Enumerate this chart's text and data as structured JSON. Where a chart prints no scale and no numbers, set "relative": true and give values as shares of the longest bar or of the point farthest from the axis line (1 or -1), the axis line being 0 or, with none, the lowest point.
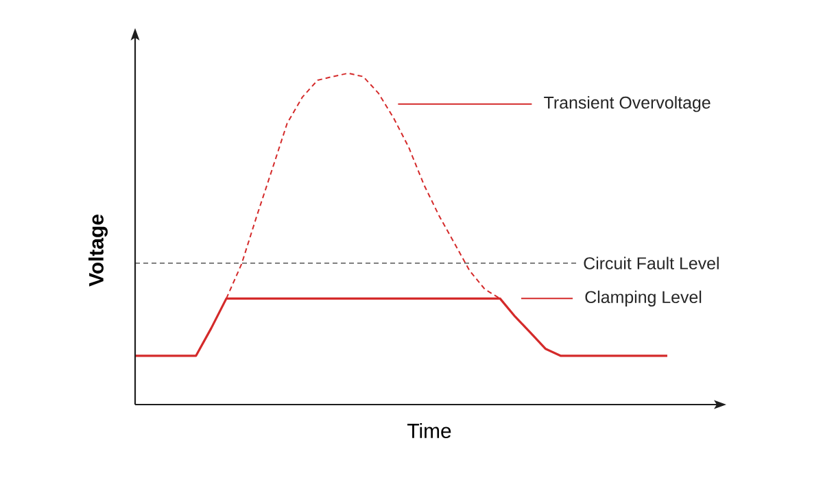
{
  "chart_data": {
    "type": "line",
    "relative": true,
    "xlabel": "Time",
    "ylabel": "Voltage",
    "marker": "none",
    "legend": "right",
    "categories": [
      null,
      null,
      null,
      null,
      null,
      null,
      null,
      null,
      null,
      null,
      null,
      null,
      null,
      null,
      null,
      null,
      null,
      null,
      null,
      null,
      null,
      null,
      null,
      null,
      null,
      null,
      null,
      null,
      null,
      null,
      null,
      null,
      null,
      null,
      null,
      null
    ],
    "series": [
      {
        "name": "Transient Overvoltage",
        "color": "#d42a2a",
        "line_style": "dashed",
        "values": [
          null,
          null,
          null,
          null,
          null,
          null,
          0.32,
          0.424,
          0.569,
          0.708,
          0.849,
          0.928,
          0.979,
          0.99,
          1,
          0.99,
          0.94,
          0.865,
          0.776,
          0.663,
          0.569,
          0.487,
          0.404,
          0.348,
          0.32,
          null,
          null,
          null,
          null,
          null,
          null,
          null,
          null,
          null,
          null,
          null
        ]
      },
      {
        "name": "Clamping Level",
        "color": "#d42a2a",
        "line_style": "solid",
        "values": [
          0.147,
          0.147,
          0.147,
          0.147,
          0.147,
          0.23,
          0.32,
          0.32,
          0.32,
          0.32,
          0.32,
          0.32,
          0.32,
          0.32,
          0.32,
          0.32,
          0.32,
          0.32,
          0.32,
          0.32,
          0.32,
          0.32,
          0.32,
          0.32,
          0.32,
          0.265,
          0.217,
          0.168,
          0.147,
          0.147,
          0.147,
          0.147,
          0.147,
          0.147,
          0.147,
          0.147
        ]
      }
    ],
    "ref_lines": [
      {
        "axis": "y",
        "value": 0.427,
        "label": "Circuit Fault Level",
        "color": "#555555",
        "line_style": "dashed"
      }
    ]
  }
}
